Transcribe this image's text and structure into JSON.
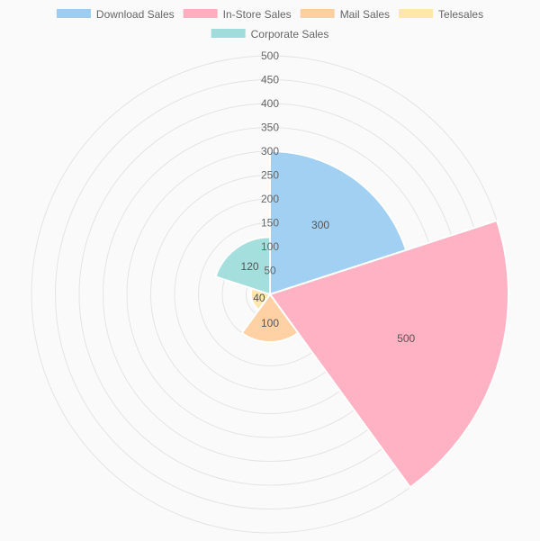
{
  "chart_data": {
    "type": "polarArea",
    "categories": [
      "Download Sales",
      "In-Store Sales",
      "Mail Sales",
      "Telesales",
      "Corporate Sales"
    ],
    "values": [
      300,
      500,
      100,
      40,
      120
    ],
    "colors": [
      "#9ccdf2",
      "#ffaec0",
      "#ffcf9f",
      "#ffe6aa",
      "#9fdcdb"
    ],
    "r_ticks": [
      50,
      100,
      150,
      200,
      250,
      300,
      350,
      400,
      450,
      500
    ],
    "r_range": [
      0,
      500
    ],
    "grid": true,
    "legend_position": "top",
    "data_labels": [
      "300",
      "500",
      "100",
      "40",
      "120"
    ]
  }
}
